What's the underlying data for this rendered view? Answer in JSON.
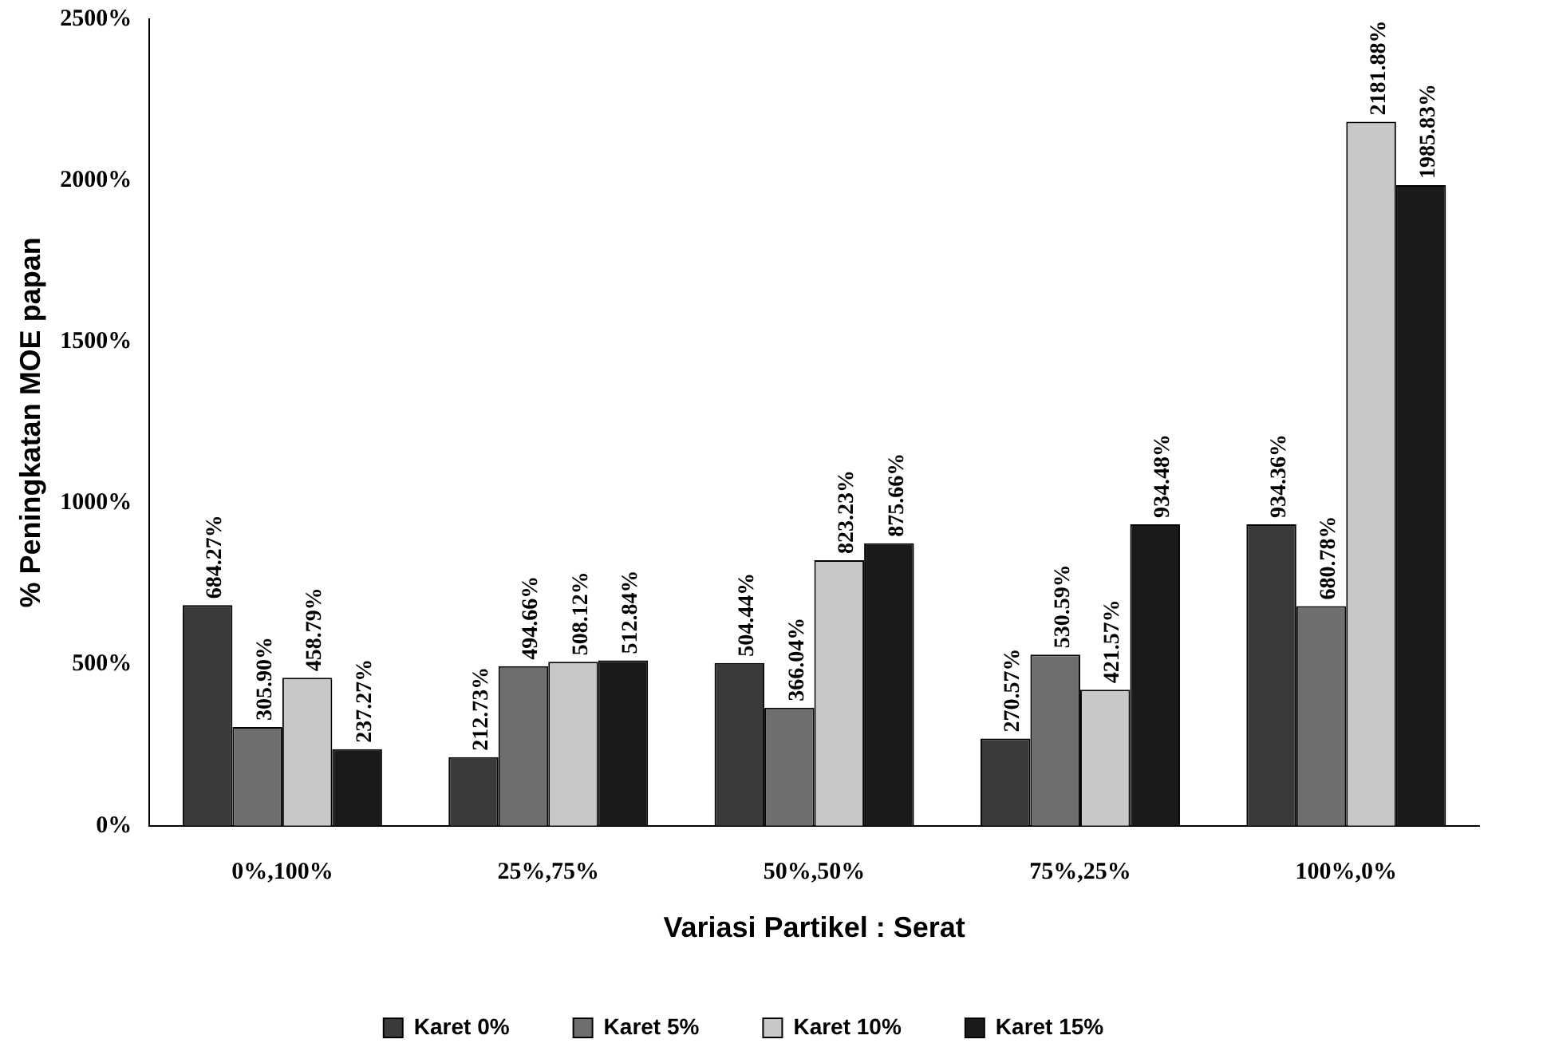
{
  "chart_data": {
    "type": "bar",
    "xlabel": "Variasi Partikel : Serat",
    "ylabel": "% Peningkatan MOE papan",
    "categories": [
      "0%,100%",
      "25%,75%",
      "50%,50%",
      "75%,25%",
      "100%,0%"
    ],
    "ylim": [
      0,
      2500
    ],
    "yticks": [
      {
        "value": 0,
        "label": "0%"
      },
      {
        "value": 500,
        "label": "500%"
      },
      {
        "value": 1000,
        "label": "1000%"
      },
      {
        "value": 1500,
        "label": "1500%"
      },
      {
        "value": 2000,
        "label": "2000%"
      },
      {
        "value": 2500,
        "label": "2500%"
      }
    ],
    "grid": false,
    "legend": "bottom",
    "series": [
      {
        "name": "Karet 0%",
        "color": "#3a3a3a",
        "values": [
          684.27,
          212.73,
          504.44,
          270.57,
          934.36
        ],
        "value_labels": [
          "684.27%",
          "212.73%",
          "504.44%",
          "270.57%",
          "934.36%"
        ]
      },
      {
        "name": "Karet 5%",
        "color": "#6e6e6e",
        "values": [
          305.9,
          494.66,
          366.04,
          530.59,
          680.78
        ],
        "value_labels": [
          "305.90%",
          "494.66%",
          "366.04%",
          "530.59%",
          "680.78%"
        ]
      },
      {
        "name": "Karet 10%",
        "color": "#c8c8c8",
        "values": [
          458.79,
          508.12,
          823.23,
          421.57,
          2181.88
        ],
        "value_labels": [
          "458.79%",
          "508.12%",
          "823.23%",
          "421.57%",
          "2181.88%"
        ]
      },
      {
        "name": "Karet 15%",
        "color": "#1a1a1a",
        "values": [
          237.27,
          512.84,
          875.66,
          934.48,
          1985.83
        ],
        "value_labels": [
          "237.27%",
          "512.84%",
          "875.66%",
          "934.48%",
          "1985.83%"
        ]
      }
    ]
  }
}
